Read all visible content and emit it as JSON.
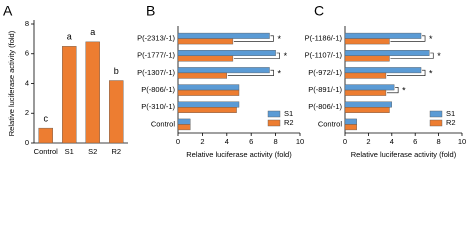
{
  "chart_data": [
    {
      "type": "bar",
      "panel": "A",
      "ylabel": "Relative luciferase activity (fold)",
      "categories": [
        "Control",
        "S1",
        "S2",
        "R2"
      ],
      "values": [
        1.0,
        6.5,
        6.8,
        4.2
      ],
      "annotations": [
        "c",
        "a",
        "a",
        "b"
      ],
      "color": "#ed7d31",
      "ylim": [
        0,
        8
      ],
      "yticks": [
        0,
        2,
        4,
        6,
        8
      ]
    },
    {
      "type": "barh",
      "panel": "B",
      "xlabel": "Relative luciferase activity (fold)",
      "categories": [
        "P(-2313/-1)",
        "P(-1777/-1)",
        "P(-1307/-1)",
        "P(-806/-1)",
        "P(-310/-1)",
        "Control"
      ],
      "series": [
        {
          "name": "S1",
          "color": "#5b9bd5",
          "values": [
            7.5,
            8.0,
            7.5,
            5.0,
            5.0,
            1.0
          ]
        },
        {
          "name": "R2",
          "color": "#ed7d31",
          "values": [
            4.5,
            4.5,
            4.0,
            5.0,
            4.8,
            1.0
          ]
        }
      ],
      "annotations": [
        "*",
        "*",
        "*",
        null,
        null,
        null
      ],
      "xlim": [
        0,
        10
      ],
      "xticks": [
        0,
        2,
        4,
        6,
        8,
        10
      ],
      "legend": "lower right"
    },
    {
      "type": "barh",
      "panel": "C",
      "xlabel": "Relative luciferase activity (fold)",
      "categories": [
        "P(-1186/-1)",
        "P(-1107/-1)",
        "P(-972/-1)",
        "P(-891/-1)",
        "P(-806/-1)",
        "Control"
      ],
      "series": [
        {
          "name": "S1",
          "color": "#5b9bd5",
          "values": [
            6.5,
            7.2,
            6.5,
            4.2,
            4.0,
            1.0
          ]
        },
        {
          "name": "R2",
          "color": "#ed7d31",
          "values": [
            3.8,
            3.8,
            3.5,
            3.5,
            3.8,
            1.0
          ]
        }
      ],
      "annotations": [
        "*",
        "*",
        "*",
        "*",
        null,
        null
      ],
      "xlim": [
        0,
        10
      ],
      "xticks": [
        0,
        2,
        4,
        6,
        8,
        10
      ],
      "legend": "lower right"
    }
  ]
}
